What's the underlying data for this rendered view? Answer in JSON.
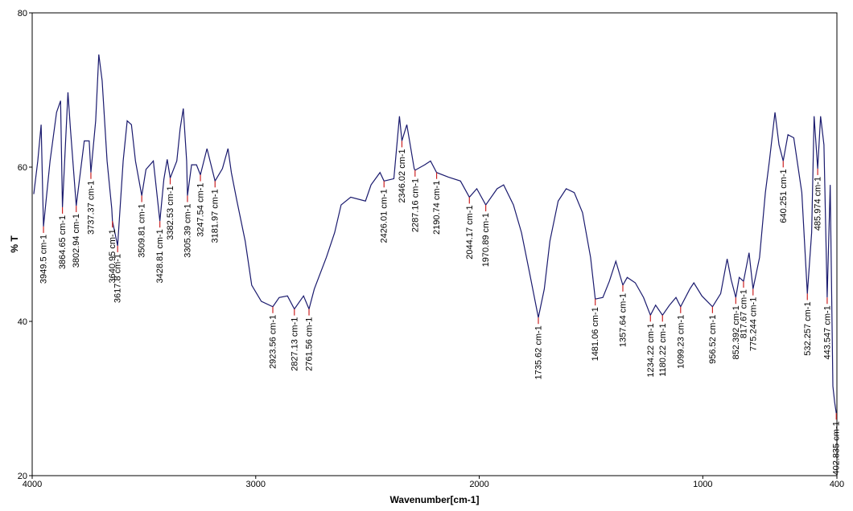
{
  "chart_data": {
    "type": "line",
    "xlabel": "Wavenumber[cm-1]",
    "ylabel": "% T",
    "xlim": [
      4000,
      400
    ],
    "ylim": [
      20,
      80
    ],
    "xticks": [
      4000,
      3000,
      2000,
      1000,
      400
    ],
    "yticks": [
      20,
      40,
      60,
      80
    ],
    "grid": false,
    "series": [
      {
        "color": "#1a1a6e",
        "x": [
          3993,
          3975,
          3960,
          3949.5,
          3920,
          3891,
          3873,
          3864.65,
          3840,
          3829,
          3802.94,
          3767,
          3745,
          3737.37,
          3716,
          3702,
          3687,
          3665,
          3644,
          3640.95,
          3617.8,
          3593,
          3575,
          3556,
          3538,
          3509.81,
          3491,
          3458,
          3428.81,
          3411,
          3396,
          3382.53,
          3353,
          3338,
          3324,
          3309,
          3305.39,
          3287,
          3265,
          3247.54,
          3218,
          3200,
          3181.97,
          3149,
          3124,
          3109,
          3084,
          3047,
          3018,
          2975,
          2923.56,
          2895,
          2858,
          2827.13,
          2786,
          2761.56,
          2738,
          2684,
          2647,
          2618,
          2575,
          2509,
          2484,
          2444,
          2426.01,
          2382,
          2357,
          2346.02,
          2324,
          2291,
          2287.16,
          2244,
          2218,
          2190.74,
          2138,
          2084,
          2044.17,
          2011,
          1970.89,
          1920,
          1891,
          1847,
          1811,
          1775,
          1735.62,
          1709,
          1684,
          1647,
          1611,
          1575,
          1538,
          1502,
          1481.06,
          1447,
          1418,
          1389,
          1357.64,
          1338,
          1302,
          1265,
          1234.22,
          1211,
          1180.22,
          1149,
          1120,
          1099.23,
          1058,
          1040,
          1004,
          956.52,
          920,
          891,
          873,
          852.392,
          837,
          817.67,
          793,
          775.244,
          746,
          720,
          702,
          677,
          659,
          640.251,
          619,
          593,
          557,
          532.257,
          513,
          502,
          485.974,
          473,
          458,
          443.547,
          430,
          418,
          410,
          402.835
        ],
        "values": [
          56.5,
          60.8,
          65.5,
          52.3,
          60.8,
          67.1,
          68.6,
          54.8,
          69.7,
          65.0,
          55.0,
          63.4,
          63.4,
          59.3,
          66.0,
          74.6,
          71.2,
          60.8,
          54.6,
          53.0,
          49.8,
          60.8,
          66.0,
          65.5,
          60.8,
          56.3,
          59.7,
          60.8,
          53.0,
          58.4,
          61.0,
          58.6,
          60.8,
          65.0,
          67.6,
          60.8,
          56.3,
          60.3,
          60.3,
          59.0,
          62.4,
          60.3,
          58.2,
          59.8,
          62.4,
          59.3,
          55.6,
          50.4,
          44.7,
          42.6,
          41.9,
          43.1,
          43.3,
          41.6,
          43.3,
          41.6,
          44.2,
          48.3,
          51.5,
          55.1,
          56.1,
          55.6,
          57.7,
          59.3,
          58.2,
          58.5,
          66.6,
          63.4,
          65.5,
          59.8,
          59.6,
          60.3,
          60.8,
          59.3,
          58.7,
          58.2,
          56.1,
          57.2,
          55.1,
          57.2,
          57.7,
          55.1,
          51.5,
          46.3,
          40.5,
          44.2,
          50.4,
          55.6,
          57.2,
          56.7,
          54.1,
          48.3,
          42.9,
          43.1,
          45.2,
          47.8,
          44.7,
          45.7,
          45.0,
          43.1,
          40.8,
          42.1,
          40.8,
          42.1,
          43.1,
          41.9,
          44.2,
          45.0,
          43.3,
          41.9,
          43.6,
          48.1,
          45.4,
          43.1,
          45.7,
          45.2,
          48.9,
          44.2,
          48.3,
          56.7,
          60.8,
          67.1,
          62.9,
          60.8,
          64.2,
          63.8,
          56.7,
          43.6,
          51.5,
          66.6,
          59.8,
          66.6,
          62.9,
          43.1,
          57.7,
          31.6,
          29.5,
          28.1
        ]
      }
    ],
    "peak_color": "#cc2222",
    "annotations": [
      {
        "x": 3949.5,
        "y": 52.3,
        "label": "3949.5 cm-1"
      },
      {
        "x": 3864.65,
        "y": 54.8,
        "label": "3864.65 cm-1"
      },
      {
        "x": 3802.94,
        "y": 55.0,
        "label": "3802.94 cm-1"
      },
      {
        "x": 3737.37,
        "y": 59.3,
        "label": "3737.37 cm-1"
      },
      {
        "x": 3640.95,
        "y": 53.0,
        "label": "3640.95 cm-1"
      },
      {
        "x": 3617.8,
        "y": 49.8,
        "label": "3617.8 cm-1"
      },
      {
        "x": 3509.81,
        "y": 56.3,
        "label": "3509.81 cm-1"
      },
      {
        "x": 3428.81,
        "y": 53.0,
        "label": "3428.81 cm-1"
      },
      {
        "x": 3382.53,
        "y": 58.6,
        "label": "3382.53 cm-1"
      },
      {
        "x": 3305.39,
        "y": 56.3,
        "label": "3305.39 cm-1"
      },
      {
        "x": 3247.54,
        "y": 59.0,
        "label": "3247.54 cm-1"
      },
      {
        "x": 3181.97,
        "y": 58.2,
        "label": "3181.97 cm-1"
      },
      {
        "x": 2923.56,
        "y": 41.9,
        "label": "2923.56 cm-1"
      },
      {
        "x": 2827.13,
        "y": 41.6,
        "label": "2827.13 cm-1"
      },
      {
        "x": 2761.56,
        "y": 41.6,
        "label": "2761.56 cm-1"
      },
      {
        "x": 2426.01,
        "y": 58.2,
        "label": "2426.01 cm-1"
      },
      {
        "x": 2346.02,
        "y": 63.4,
        "label": "2346.02 cm-1"
      },
      {
        "x": 2287.16,
        "y": 59.6,
        "label": "2287.16 cm-1"
      },
      {
        "x": 2190.74,
        "y": 59.3,
        "label": "2190.74 cm-1"
      },
      {
        "x": 2044.17,
        "y": 56.1,
        "label": "2044.17 cm-1"
      },
      {
        "x": 1970.89,
        "y": 55.1,
        "label": "1970.89 cm-1"
      },
      {
        "x": 1735.62,
        "y": 40.5,
        "label": "1735.62 cm-1"
      },
      {
        "x": 1481.06,
        "y": 42.9,
        "label": "1481.06 cm-1"
      },
      {
        "x": 1357.64,
        "y": 44.7,
        "label": "1357.64 cm-1"
      },
      {
        "x": 1234.22,
        "y": 40.8,
        "label": "1234.22 cm-1"
      },
      {
        "x": 1180.22,
        "y": 40.8,
        "label": "1180.22 cm-1"
      },
      {
        "x": 1099.23,
        "y": 41.9,
        "label": "1099.23 cm-1"
      },
      {
        "x": 956.52,
        "y": 41.9,
        "label": "956.52 cm-1"
      },
      {
        "x": 852.392,
        "y": 43.1,
        "label": "852.392 cm-1"
      },
      {
        "x": 817.67,
        "y": 45.2,
        "label": "817.67 cm-1"
      },
      {
        "x": 775.244,
        "y": 44.2,
        "label": "775.244 cm-1"
      },
      {
        "x": 640.251,
        "y": 60.8,
        "label": "640.251 cm-1"
      },
      {
        "x": 532.257,
        "y": 43.6,
        "label": "532.257 cm-1"
      },
      {
        "x": 485.974,
        "y": 59.8,
        "label": "485.974 cm-1"
      },
      {
        "x": 443.547,
        "y": 43.1,
        "label": "443.547 cm-1"
      },
      {
        "x": 402.835,
        "y": 28.1,
        "label": "402.835 cm-1"
      }
    ]
  }
}
